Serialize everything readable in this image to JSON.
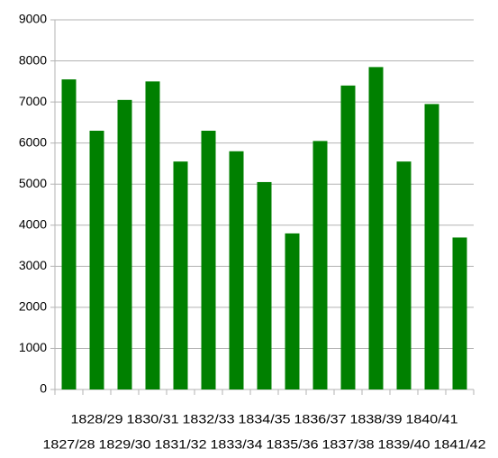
{
  "chart_data": {
    "type": "bar",
    "categories": [
      "1827/28",
      "1828/29",
      "1829/30",
      "1830/31",
      "1831/32",
      "1832/33",
      "1833/34",
      "1834/35",
      "1835/36",
      "1836/37",
      "1837/38",
      "1838/39",
      "1839/40",
      "1840/41",
      "1841/42"
    ],
    "values": [
      7550,
      6300,
      7050,
      7500,
      5550,
      6300,
      5800,
      5050,
      3800,
      6050,
      7400,
      7850,
      5550,
      6950,
      3700
    ],
    "color": "#008000",
    "ylim": [
      0,
      9000
    ],
    "yticks": [
      0,
      1000,
      2000,
      3000,
      4000,
      5000,
      6000,
      7000,
      8000,
      9000
    ],
    "grid": true
  }
}
